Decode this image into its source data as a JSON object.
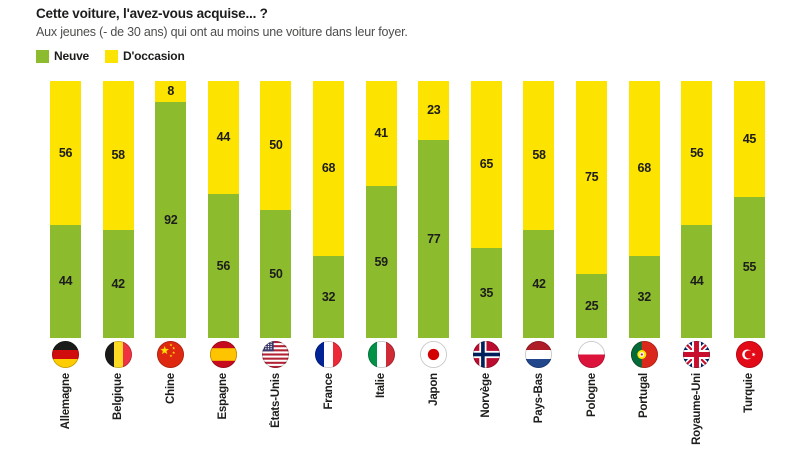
{
  "title": "Cette voiture, l'avez-vous acquise... ?",
  "subtitle": "Aux jeunes (- de 30 ans) qui ont au moins une voiture dans leur foyer.",
  "legend": {
    "neuve": "Neuve",
    "occasion": "D'occasion"
  },
  "colors": {
    "neuve": "#8cbb2e",
    "occasion": "#fce300",
    "text": "#1d1d1b",
    "subtitle": "#4d4d4b"
  },
  "chart_data": {
    "type": "bar",
    "stacked": true,
    "unit": "percent",
    "orientation": "vertical",
    "ylim": [
      0,
      100
    ],
    "grid": false,
    "legend_position": "top-left",
    "categories": [
      "Allemagne",
      "Belgique",
      "Chine",
      "Espagne",
      "États-Unis",
      "France",
      "Italie",
      "Japon",
      "Norvège",
      "Pays-Bas",
      "Pologne",
      "Portugal",
      "Royaume-Uni",
      "Turquie"
    ],
    "category_flags": [
      "de",
      "be",
      "cn",
      "es",
      "us",
      "fr",
      "it",
      "jp",
      "no",
      "nl",
      "pl",
      "pt",
      "gb",
      "tr"
    ],
    "series": [
      {
        "name": "Neuve",
        "color": "#8cbb2e",
        "values": [
          44,
          42,
          92,
          56,
          50,
          32,
          59,
          77,
          35,
          42,
          25,
          32,
          44,
          55
        ]
      },
      {
        "name": "D'occasion",
        "color": "#fce300",
        "values": [
          56,
          58,
          8,
          44,
          50,
          68,
          41,
          23,
          65,
          58,
          75,
          68,
          56,
          45
        ]
      }
    ]
  }
}
